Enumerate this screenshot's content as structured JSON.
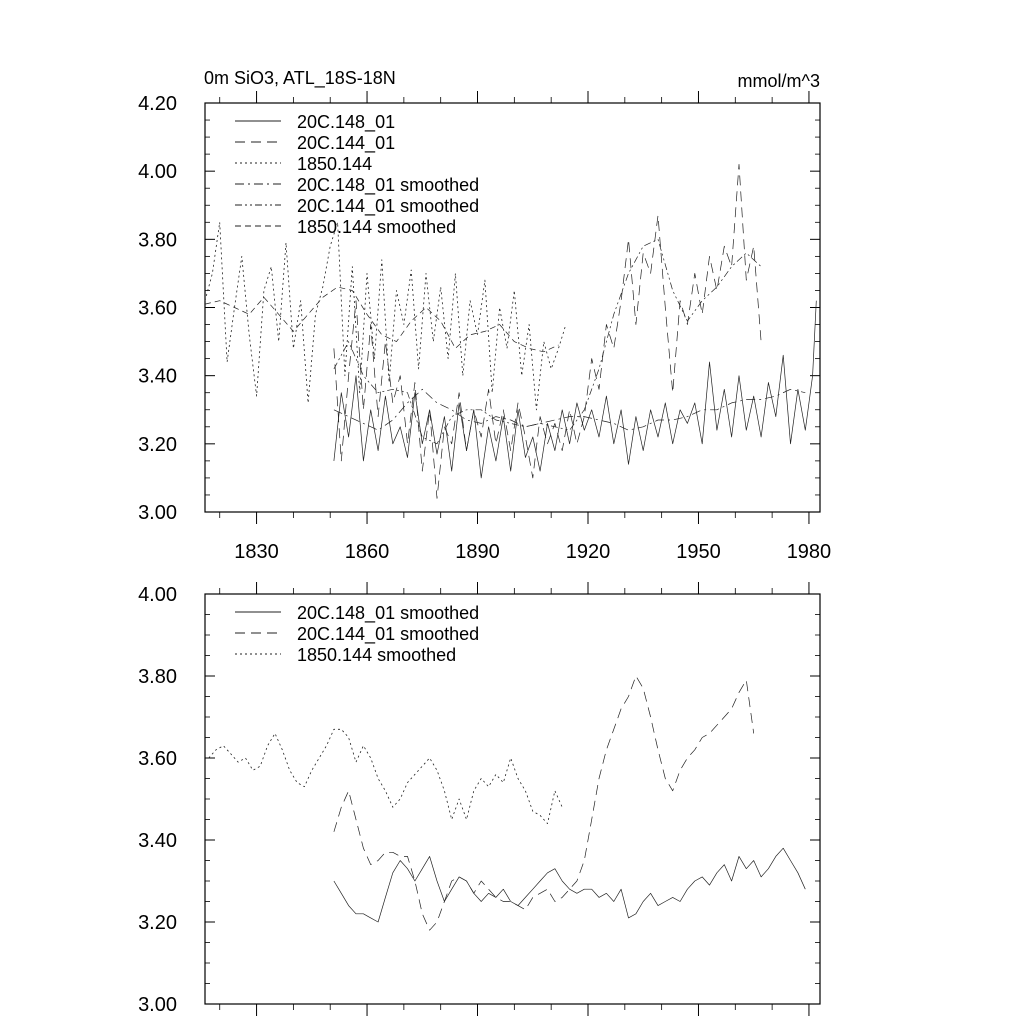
{
  "figure": {
    "title_left": "0m SiO3, ATL_18S-18N",
    "title_right": "mmol/m^3"
  },
  "chart_data": [
    {
      "type": "line",
      "title": "0m SiO3, ATL_18S-18N",
      "units_label": "mmol/m^3",
      "xlim": [
        1816,
        1983
      ],
      "ylim": [
        3.0,
        4.2
      ],
      "x_ticks": [
        1830,
        1860,
        1890,
        1920,
        1950,
        1980
      ],
      "x_tick_labels": [
        "1830",
        "1860",
        "1890",
        "1920",
        "1950",
        "1980"
      ],
      "y_ticks": [
        3.0,
        3.2,
        3.4,
        3.6,
        3.8,
        4.0,
        4.2
      ],
      "y_tick_labels": [
        "3.00",
        "3.20",
        "3.40",
        "3.60",
        "3.80",
        "4.00",
        "4.20"
      ],
      "legend_position": "top-left",
      "series": [
        {
          "name": "20C.148_01",
          "style": "solid",
          "width": 0.7,
          "x": [
            1851,
            1853,
            1855,
            1857,
            1859,
            1861,
            1863,
            1865,
            1867,
            1869,
            1871,
            1873,
            1875,
            1877,
            1879,
            1881,
            1883,
            1885,
            1887,
            1889,
            1891,
            1893,
            1895,
            1897,
            1899,
            1901,
            1903,
            1905,
            1907,
            1909,
            1911,
            1913,
            1915,
            1917,
            1919,
            1921,
            1923,
            1925,
            1927,
            1929,
            1931,
            1933,
            1935,
            1937,
            1939,
            1941,
            1943,
            1945,
            1947,
            1949,
            1951,
            1953,
            1955,
            1957,
            1959,
            1961,
            1963,
            1965,
            1967,
            1969,
            1971,
            1973,
            1975,
            1977,
            1979,
            1981,
            1982
          ],
          "y": [
            3.15,
            3.35,
            3.22,
            3.4,
            3.15,
            3.3,
            3.18,
            3.34,
            3.2,
            3.25,
            3.16,
            3.35,
            3.2,
            3.3,
            3.17,
            3.28,
            3.12,
            3.32,
            3.18,
            3.3,
            3.1,
            3.25,
            3.15,
            3.28,
            3.12,
            3.3,
            3.16,
            3.22,
            3.12,
            3.26,
            3.18,
            3.3,
            3.2,
            3.32,
            3.24,
            3.3,
            3.22,
            3.34,
            3.2,
            3.3,
            3.14,
            3.28,
            3.18,
            3.3,
            3.22,
            3.32,
            3.2,
            3.3,
            3.26,
            3.32,
            3.2,
            3.44,
            3.24,
            3.36,
            3.22,
            3.4,
            3.24,
            3.34,
            3.22,
            3.38,
            3.28,
            3.46,
            3.2,
            3.36,
            3.24,
            3.4,
            3.62
          ]
        },
        {
          "name": "20C.144_01",
          "style": "dash-long",
          "width": 0.7,
          "x": [
            1851,
            1853,
            1855,
            1857,
            1859,
            1861,
            1863,
            1865,
            1867,
            1869,
            1871,
            1873,
            1875,
            1877,
            1879,
            1881,
            1883,
            1885,
            1887,
            1889,
            1891,
            1893,
            1895,
            1897,
            1899,
            1901,
            1903,
            1905,
            1907,
            1909,
            1911,
            1913,
            1915,
            1917,
            1919,
            1921,
            1923,
            1925,
            1927,
            1929,
            1931,
            1933,
            1935,
            1937,
            1939,
            1941,
            1943,
            1945,
            1947,
            1949,
            1951,
            1953,
            1955,
            1957,
            1959,
            1961,
            1963,
            1965,
            1967
          ],
          "y": [
            3.48,
            3.15,
            3.4,
            3.62,
            3.3,
            3.55,
            3.28,
            3.5,
            3.32,
            3.4,
            3.2,
            3.38,
            3.12,
            3.3,
            3.04,
            3.25,
            3.2,
            3.35,
            3.18,
            3.3,
            3.22,
            3.36,
            3.2,
            3.3,
            3.18,
            3.32,
            3.22,
            3.1,
            3.28,
            3.2,
            3.26,
            3.18,
            3.3,
            3.2,
            3.28,
            3.45,
            3.36,
            3.55,
            3.48,
            3.62,
            3.8,
            3.55,
            3.76,
            3.7,
            3.87,
            3.6,
            3.35,
            3.62,
            3.55,
            3.7,
            3.58,
            3.75,
            3.65,
            3.78,
            3.72,
            4.02,
            3.68,
            3.78,
            3.5
          ]
        },
        {
          "name": "1850.144",
          "style": "dot",
          "width": 0.8,
          "x": [
            1816,
            1818,
            1820,
            1822,
            1824,
            1826,
            1828,
            1830,
            1832,
            1834,
            1836,
            1838,
            1840,
            1842,
            1844,
            1846,
            1848,
            1850,
            1852,
            1854,
            1856,
            1858,
            1860,
            1862,
            1864,
            1866,
            1868,
            1870,
            1872,
            1874,
            1876,
            1878,
            1880,
            1882,
            1884,
            1886,
            1888,
            1890,
            1892,
            1894,
            1896,
            1898,
            1900,
            1902,
            1904,
            1906,
            1908,
            1910,
            1912,
            1914
          ],
          "y": [
            3.62,
            3.7,
            3.85,
            3.44,
            3.6,
            3.75,
            3.52,
            3.34,
            3.65,
            3.72,
            3.5,
            3.79,
            3.48,
            3.62,
            3.32,
            3.58,
            3.66,
            3.78,
            3.85,
            3.4,
            3.72,
            3.35,
            3.7,
            3.45,
            3.74,
            3.38,
            3.65,
            3.55,
            3.71,
            3.42,
            3.7,
            3.5,
            3.66,
            3.45,
            3.7,
            3.4,
            3.62,
            3.52,
            3.68,
            3.35,
            3.6,
            3.48,
            3.65,
            3.4,
            3.55,
            3.3,
            3.5,
            3.42,
            3.48,
            3.55
          ]
        },
        {
          "name": "20C.148_01 smoothed",
          "style": "dash-dot",
          "width": 0.7,
          "x": [
            1851,
            1855,
            1859,
            1863,
            1867,
            1871,
            1875,
            1879,
            1883,
            1887,
            1891,
            1895,
            1899,
            1903,
            1907,
            1911,
            1915,
            1919,
            1923,
            1927,
            1931,
            1935,
            1939,
            1943,
            1947,
            1951,
            1955,
            1959,
            1963,
            1967,
            1971,
            1975,
            1979
          ],
          "y": [
            3.3,
            3.28,
            3.26,
            3.24,
            3.27,
            3.32,
            3.36,
            3.32,
            3.3,
            3.27,
            3.26,
            3.28,
            3.27,
            3.25,
            3.26,
            3.27,
            3.28,
            3.28,
            3.27,
            3.26,
            3.24,
            3.25,
            3.27,
            3.27,
            3.28,
            3.3,
            3.3,
            3.32,
            3.33,
            3.33,
            3.34,
            3.36,
            3.35
          ]
        },
        {
          "name": "20C.144_01 smoothed",
          "style": "dash-dot-dot",
          "width": 0.7,
          "x": [
            1851,
            1855,
            1859,
            1863,
            1867,
            1871,
            1875,
            1879,
            1883,
            1887,
            1891,
            1895,
            1899,
            1903,
            1907,
            1911,
            1915,
            1919,
            1923,
            1927,
            1931,
            1935,
            1939,
            1943,
            1947,
            1951,
            1955,
            1959,
            1963,
            1967
          ],
          "y": [
            3.42,
            3.5,
            3.4,
            3.35,
            3.36,
            3.35,
            3.22,
            3.2,
            3.28,
            3.3,
            3.3,
            3.27,
            3.26,
            3.25,
            3.26,
            3.25,
            3.24,
            3.3,
            3.42,
            3.58,
            3.7,
            3.78,
            3.8,
            3.65,
            3.56,
            3.62,
            3.66,
            3.72,
            3.76,
            3.72
          ]
        },
        {
          "name": "1850.144 smoothed",
          "style": "dash-short",
          "width": 0.7,
          "x": [
            1816,
            1820,
            1824,
            1828,
            1832,
            1836,
            1840,
            1844,
            1848,
            1852,
            1856,
            1860,
            1864,
            1868,
            1872,
            1876,
            1880,
            1884,
            1888,
            1892,
            1896,
            1900,
            1904,
            1908,
            1912
          ],
          "y": [
            3.61,
            3.62,
            3.6,
            3.58,
            3.63,
            3.58,
            3.53,
            3.58,
            3.63,
            3.66,
            3.65,
            3.58,
            3.52,
            3.5,
            3.56,
            3.6,
            3.56,
            3.48,
            3.52,
            3.53,
            3.55,
            3.5,
            3.48,
            3.47,
            3.49
          ]
        }
      ]
    },
    {
      "type": "line",
      "title": "",
      "xlim": [
        1816,
        1983
      ],
      "ylim": [
        3.0,
        4.0
      ],
      "x_ticks": [
        1830,
        1860,
        1890,
        1920,
        1950,
        1980
      ],
      "x_tick_labels": [],
      "y_ticks": [
        3.0,
        3.2,
        3.4,
        3.6,
        3.8,
        4.0
      ],
      "y_tick_labels": [
        "3.00",
        "3.20",
        "3.40",
        "3.60",
        "3.80",
        "4.00"
      ],
      "legend_position": "top-left",
      "series": [
        {
          "name": "20C.148_01 smoothed",
          "style": "solid",
          "width": 0.7,
          "x": [
            1851,
            1853,
            1855,
            1857,
            1859,
            1861,
            1863,
            1865,
            1867,
            1869,
            1871,
            1873,
            1875,
            1877,
            1879,
            1881,
            1883,
            1885,
            1887,
            1889,
            1891,
            1893,
            1895,
            1897,
            1899,
            1901,
            1903,
            1905,
            1907,
            1909,
            1911,
            1913,
            1915,
            1917,
            1919,
            1921,
            1923,
            1925,
            1927,
            1929,
            1931,
            1933,
            1935,
            1937,
            1939,
            1941,
            1943,
            1945,
            1947,
            1949,
            1951,
            1953,
            1955,
            1957,
            1959,
            1961,
            1963,
            1965,
            1967,
            1969,
            1971,
            1973,
            1975,
            1977,
            1979
          ],
          "y": [
            3.3,
            3.27,
            3.24,
            3.22,
            3.22,
            3.21,
            3.2,
            3.26,
            3.32,
            3.35,
            3.33,
            3.3,
            3.33,
            3.36,
            3.3,
            3.25,
            3.28,
            3.31,
            3.3,
            3.27,
            3.25,
            3.27,
            3.26,
            3.28,
            3.25,
            3.24,
            3.26,
            3.28,
            3.3,
            3.32,
            3.33,
            3.3,
            3.28,
            3.27,
            3.28,
            3.28,
            3.26,
            3.27,
            3.25,
            3.28,
            3.21,
            3.22,
            3.25,
            3.27,
            3.24,
            3.25,
            3.26,
            3.25,
            3.28,
            3.3,
            3.31,
            3.29,
            3.32,
            3.34,
            3.3,
            3.36,
            3.33,
            3.35,
            3.31,
            3.33,
            3.36,
            3.38,
            3.35,
            3.32,
            3.28
          ]
        },
        {
          "name": "20C.144_01 smoothed",
          "style": "dash-long",
          "width": 0.7,
          "x": [
            1851,
            1853,
            1855,
            1857,
            1859,
            1861,
            1863,
            1865,
            1867,
            1869,
            1871,
            1873,
            1875,
            1877,
            1879,
            1881,
            1883,
            1885,
            1887,
            1889,
            1891,
            1893,
            1895,
            1897,
            1899,
            1901,
            1903,
            1905,
            1907,
            1909,
            1911,
            1913,
            1915,
            1917,
            1919,
            1921,
            1923,
            1925,
            1927,
            1929,
            1931,
            1933,
            1935,
            1937,
            1939,
            1941,
            1943,
            1945,
            1947,
            1949,
            1951,
            1953,
            1955,
            1957,
            1959,
            1961,
            1963,
            1965
          ],
          "y": [
            3.42,
            3.48,
            3.52,
            3.45,
            3.38,
            3.34,
            3.35,
            3.37,
            3.37,
            3.36,
            3.36,
            3.3,
            3.22,
            3.18,
            3.2,
            3.25,
            3.3,
            3.31,
            3.3,
            3.27,
            3.3,
            3.28,
            3.26,
            3.25,
            3.25,
            3.24,
            3.23,
            3.26,
            3.27,
            3.28,
            3.25,
            3.26,
            3.28,
            3.3,
            3.35,
            3.45,
            3.55,
            3.62,
            3.67,
            3.72,
            3.75,
            3.8,
            3.77,
            3.7,
            3.62,
            3.55,
            3.52,
            3.57,
            3.6,
            3.62,
            3.65,
            3.66,
            3.68,
            3.7,
            3.72,
            3.76,
            3.79,
            3.66
          ]
        },
        {
          "name": "1850.144 smoothed",
          "style": "dot",
          "width": 0.8,
          "x": [
            1817,
            1819,
            1821,
            1823,
            1825,
            1827,
            1829,
            1831,
            1833,
            1835,
            1837,
            1839,
            1841,
            1843,
            1845,
            1847,
            1849,
            1851,
            1853,
            1855,
            1857,
            1859,
            1861,
            1863,
            1865,
            1867,
            1869,
            1871,
            1873,
            1875,
            1877,
            1879,
            1881,
            1883,
            1885,
            1887,
            1889,
            1891,
            1893,
            1895,
            1897,
            1899,
            1901,
            1903,
            1905,
            1907,
            1909,
            1911,
            1913
          ],
          "y": [
            3.6,
            3.62,
            3.63,
            3.61,
            3.59,
            3.6,
            3.57,
            3.58,
            3.63,
            3.66,
            3.62,
            3.57,
            3.54,
            3.53,
            3.57,
            3.6,
            3.63,
            3.67,
            3.67,
            3.65,
            3.59,
            3.63,
            3.6,
            3.55,
            3.52,
            3.48,
            3.5,
            3.54,
            3.56,
            3.58,
            3.6,
            3.57,
            3.52,
            3.45,
            3.5,
            3.45,
            3.52,
            3.55,
            3.53,
            3.56,
            3.54,
            3.6,
            3.55,
            3.52,
            3.47,
            3.46,
            3.44,
            3.52,
            3.48
          ]
        }
      ]
    }
  ]
}
